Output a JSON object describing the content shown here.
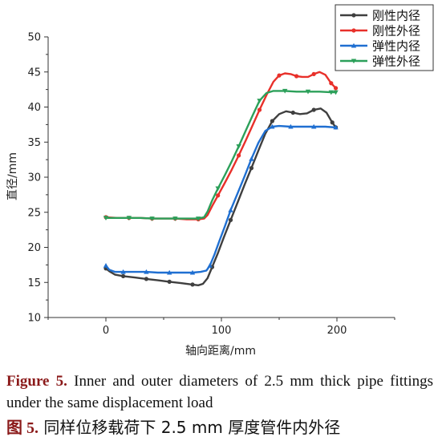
{
  "chart_data": {
    "type": "line",
    "xlabel": "轴向距离/mm",
    "ylabel": "直径/mm",
    "xlim": [
      -50,
      250
    ],
    "ylim": [
      10,
      50
    ],
    "xticks": [
      0,
      100,
      200
    ],
    "yticks": [
      10,
      15,
      20,
      25,
      30,
      35,
      40,
      45,
      50
    ],
    "legend_position": "top-right",
    "series": [
      {
        "name": "刚性内径",
        "color": "#3f3f3f",
        "marker": "circle",
        "x": [
          0,
          3,
          8,
          15,
          25,
          35,
          45,
          55,
          65,
          75,
          80,
          84,
          88,
          92,
          97,
          102,
          108,
          114,
          120,
          126,
          132,
          138,
          144,
          150,
          156,
          162,
          168,
          174,
          180,
          186,
          191,
          196,
          199
        ],
        "y": [
          17.0,
          16.6,
          16.1,
          15.9,
          15.7,
          15.5,
          15.3,
          15.1,
          14.9,
          14.7,
          14.6,
          14.8,
          15.6,
          17.2,
          19.2,
          21.4,
          23.9,
          26.4,
          28.9,
          31.3,
          33.8,
          36.2,
          38.0,
          39.0,
          39.4,
          39.2,
          39.0,
          39.1,
          39.6,
          39.8,
          39.2,
          37.8,
          37.1
        ]
      },
      {
        "name": "刚性外径",
        "color": "#e8302a",
        "marker": "circle",
        "x": [
          0,
          10,
          20,
          30,
          40,
          50,
          60,
          70,
          80,
          85,
          88,
          92,
          97,
          103,
          109,
          115,
          121,
          127,
          133,
          139,
          145,
          150,
          155,
          160,
          165,
          170,
          175,
          180,
          185,
          190,
          195,
          199
        ],
        "y": [
          24.3,
          24.2,
          24.2,
          24.2,
          24.1,
          24.1,
          24.1,
          24.0,
          24.0,
          24.1,
          24.6,
          25.9,
          27.4,
          29.2,
          31.1,
          33.1,
          35.2,
          37.4,
          39.6,
          41.7,
          43.6,
          44.5,
          44.8,
          44.7,
          44.4,
          44.3,
          44.3,
          44.7,
          45.0,
          44.6,
          43.4,
          42.7
        ]
      },
      {
        "name": "弹性内径",
        "color": "#1f6fd1",
        "marker": "triangle-up",
        "x": [
          0,
          3,
          8,
          15,
          25,
          35,
          45,
          55,
          65,
          75,
          82,
          87,
          90,
          94,
          98,
          103,
          108,
          114,
          120,
          126,
          132,
          138,
          144,
          150,
          160,
          170,
          180,
          190,
          199
        ],
        "y": [
          17.4,
          16.8,
          16.5,
          16.5,
          16.5,
          16.5,
          16.4,
          16.4,
          16.4,
          16.4,
          16.5,
          16.7,
          17.4,
          19.0,
          20.8,
          23.0,
          25.3,
          27.7,
          30.1,
          32.6,
          34.9,
          36.6,
          37.2,
          37.3,
          37.2,
          37.2,
          37.2,
          37.2,
          37.1
        ]
      },
      {
        "name": "弹性外径",
        "color": "#2ca05a",
        "marker": "triangle-down",
        "x": [
          0,
          10,
          20,
          30,
          40,
          50,
          60,
          70,
          80,
          85,
          88,
          92,
          97,
          103,
          109,
          115,
          121,
          127,
          133,
          139,
          145,
          155,
          165,
          175,
          185,
          195,
          199
        ],
        "y": [
          24.2,
          24.2,
          24.2,
          24.2,
          24.1,
          24.1,
          24.1,
          24.1,
          24.1,
          24.3,
          25.1,
          26.7,
          28.4,
          30.3,
          32.3,
          34.4,
          36.6,
          38.8,
          40.9,
          42.0,
          42.3,
          42.3,
          42.2,
          42.2,
          42.2,
          42.1,
          42.1
        ]
      }
    ]
  },
  "caption": {
    "en_label": "Figure 5.",
    "en_text": " Inner and outer diameters of 2.5 mm thick pipe fittings under the same displacement load",
    "zh_label": "图 5.",
    "zh_text": " 同样位移载荷下 2.5 mm 厚度管件内外径"
  }
}
